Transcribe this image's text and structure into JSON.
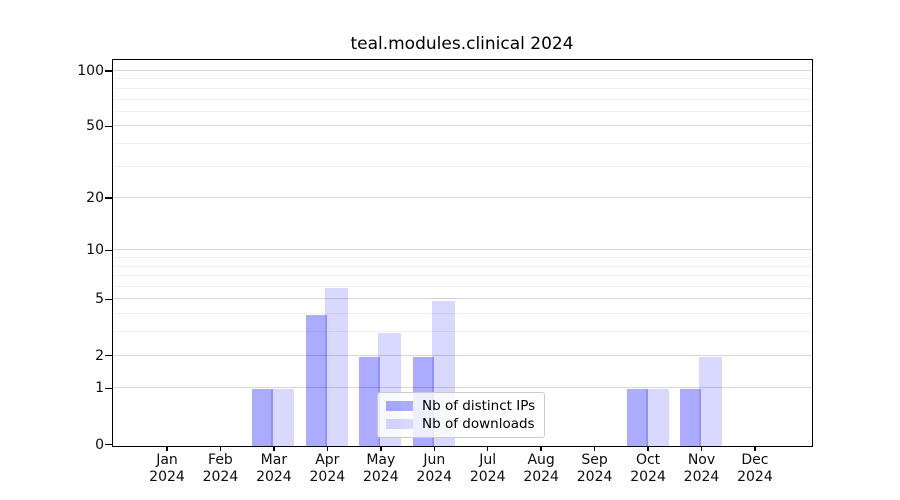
{
  "chart_data": {
    "type": "bar",
    "title": "teal.modules.clinical 2024",
    "categories": [
      "Jan 2024",
      "Feb 2024",
      "Mar 2024",
      "Apr 2024",
      "May 2024",
      "Jun 2024",
      "Jul 2024",
      "Aug 2024",
      "Sep 2024",
      "Oct 2024",
      "Nov 2024",
      "Dec 2024"
    ],
    "series": [
      {
        "name": "Nb of distinct IPs",
        "color": "rgba(0,0,255,0.33)",
        "values": [
          0,
          0,
          1,
          4,
          2,
          2,
          0,
          0,
          0,
          1,
          1,
          0
        ]
      },
      {
        "name": "Nb of downloads",
        "color": "rgba(0,0,255,0.15)",
        "values": [
          0,
          0,
          1,
          6,
          3,
          5,
          0,
          0,
          0,
          1,
          2,
          0
        ]
      }
    ],
    "y_axis": {
      "scale": "log10(1+v)",
      "ticks": [
        0,
        1,
        2,
        5,
        10,
        20,
        50,
        100
      ],
      "minor_gridlines": [
        3,
        4,
        6,
        7,
        8,
        9,
        30,
        40,
        60,
        70,
        80,
        90
      ],
      "top_value": 115
    },
    "legend_position": "lower center",
    "grid": true,
    "colors": {
      "major_grid": "#d7d7d7",
      "minor_grid": "#f0f0f0",
      "spine": "#000000",
      "background": "#ffffff"
    }
  }
}
